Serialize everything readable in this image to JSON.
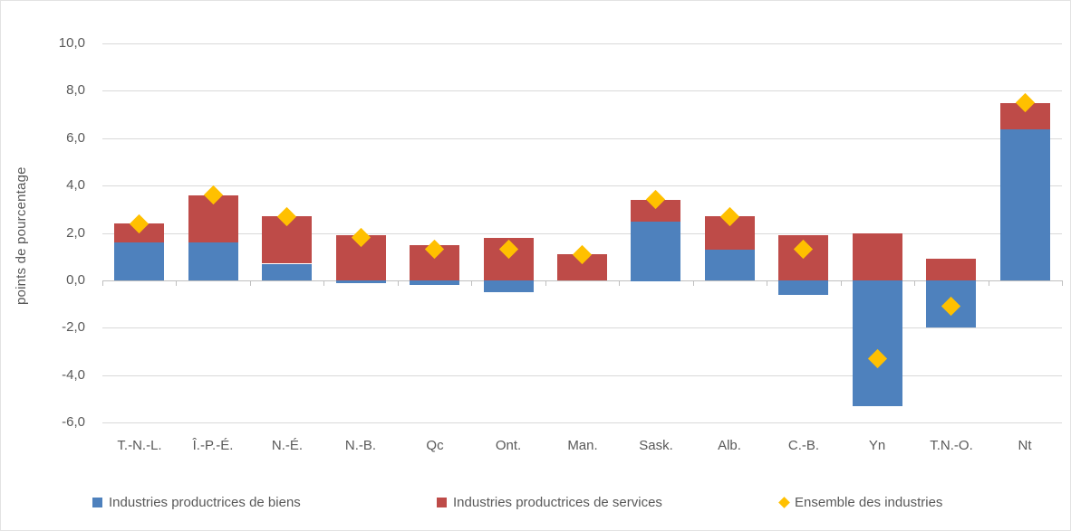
{
  "page": {
    "background": "#ffffff",
    "border_color": "#e3e3e3"
  },
  "chart_data": {
    "type": "bar",
    "stacked": true,
    "title": "",
    "xlabel": "",
    "ylabel": "points de pourcentage",
    "ylim": [
      -6,
      10
    ],
    "ytick_step": 2,
    "ytick_values": [
      10,
      8,
      6,
      4,
      2,
      0,
      -2,
      -4,
      -6
    ],
    "ytick_labels": [
      "10,0",
      "8,0",
      "6,0",
      "4,0",
      "2,0",
      "0,0",
      "-2,0",
      "-4,0",
      "-6,0"
    ],
    "grid": true,
    "legend_position": "bottom",
    "categories": [
      "T.-N.-L.",
      "Î.-P.-É.",
      "N.-É.",
      "N.-B.",
      "Qc",
      "Ont.",
      "Man.",
      "Sask.",
      "Alb.",
      "C.-B.",
      "Yn",
      "T.N.-O.",
      "Nt"
    ],
    "series": [
      {
        "name": "Industries productrices de biens",
        "type": "bar",
        "color": "#4e81bd",
        "values": [
          1.6,
          1.6,
          0.7,
          -0.1,
          -0.2,
          -0.5,
          0.0,
          2.5,
          1.3,
          -0.6,
          -5.3,
          -2.0,
          6.4
        ]
      },
      {
        "name": "Industries productrices de services",
        "type": "bar",
        "color": "#be4b48",
        "values": [
          0.8,
          2.0,
          2.0,
          1.9,
          1.5,
          1.8,
          1.1,
          0.9,
          1.4,
          1.9,
          2.0,
          0.9,
          1.1
        ]
      },
      {
        "name": "Ensemble des industries",
        "type": "scatter",
        "marker": "diamond",
        "color": "#ffc000",
        "values": [
          2.4,
          3.6,
          2.7,
          1.8,
          1.3,
          1.3,
          1.1,
          3.4,
          2.7,
          1.3,
          -3.3,
          -1.1,
          7.5
        ]
      }
    ],
    "colors": {
      "gridline": "#d9d9d9",
      "zero_axis": "#bfbfbf",
      "text": "#595959"
    }
  }
}
